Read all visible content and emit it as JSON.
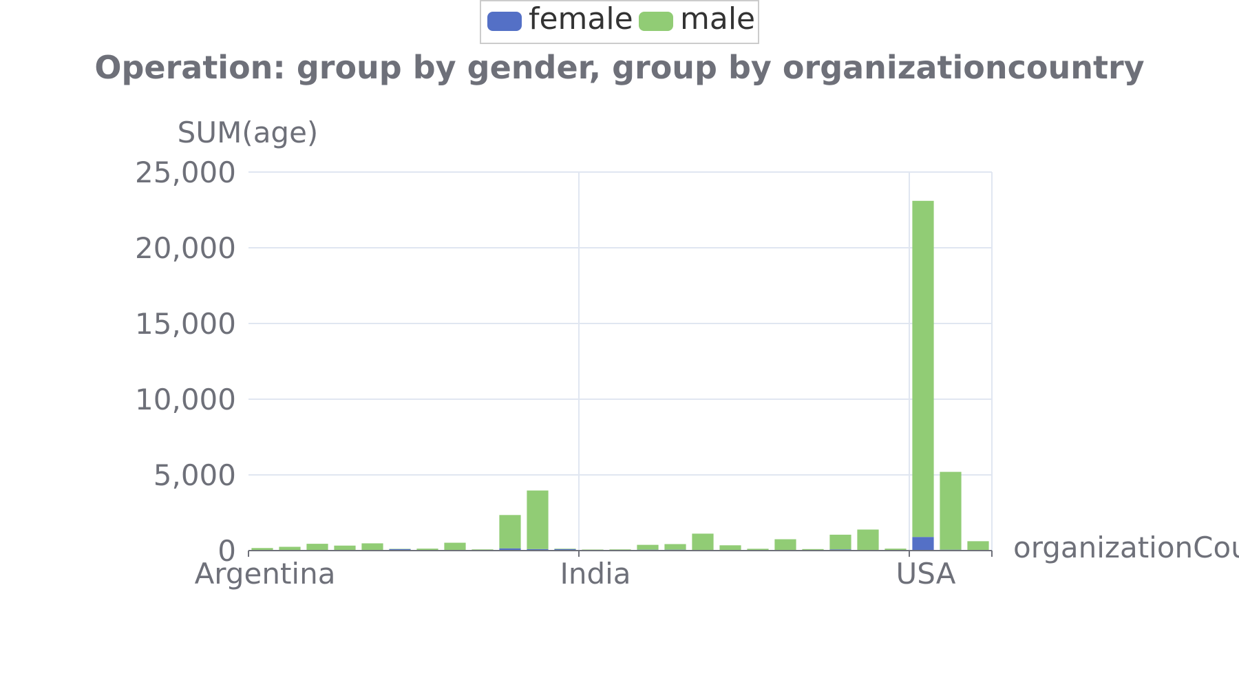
{
  "chart_data": {
    "type": "bar",
    "stacked": true,
    "title": "Operation: group by gender, group by organizationcountry",
    "ylabel": "SUM(age)",
    "xlabel": "organizationCou",
    "ylim": [
      0,
      25000
    ],
    "yticks": [
      "0",
      "5,000",
      "10,000",
      "15,000",
      "20,000",
      "25,000"
    ],
    "grid": true,
    "legend_position": "top-center",
    "xtick_labels": [
      {
        "index": 0,
        "label": "Argentina"
      },
      {
        "index": 12,
        "label": "India"
      },
      {
        "index": 24,
        "label": "USA"
      }
    ],
    "category_count": 27,
    "series": [
      {
        "name": "female",
        "color": "#5470c6",
        "values": [
          20,
          20,
          30,
          20,
          30,
          100,
          30,
          30,
          30,
          150,
          100,
          100,
          30,
          20,
          60,
          60,
          30,
          30,
          30,
          30,
          30,
          80,
          30,
          20,
          900,
          60,
          30
        ]
      },
      {
        "name": "male",
        "color": "#91cc75",
        "values": [
          150,
          230,
          420,
          310,
          450,
          20,
          100,
          490,
          50,
          2200,
          3870,
          30,
          40,
          60,
          320,
          370,
          1090,
          320,
          90,
          720,
          70,
          970,
          1360,
          110,
          22200,
          5140,
          590
        ]
      }
    ]
  },
  "legend": {
    "female": "female",
    "male": "male"
  }
}
